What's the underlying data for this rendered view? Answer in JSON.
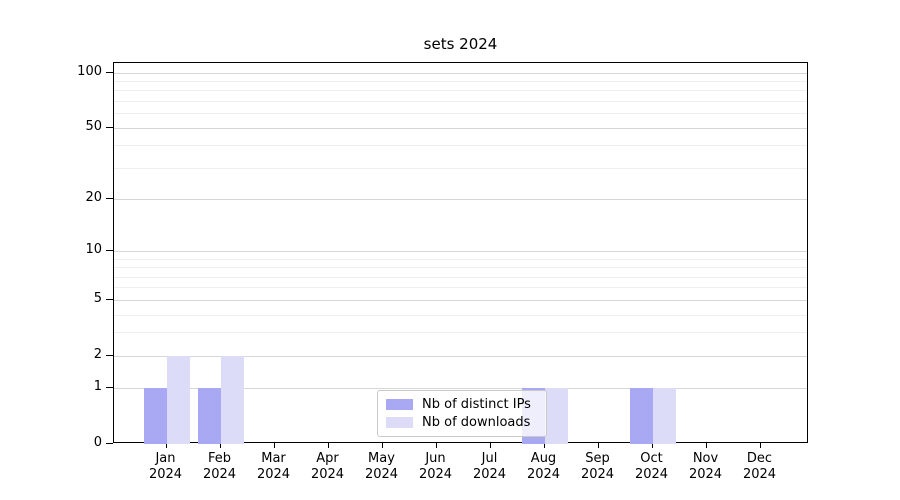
{
  "chart_data": {
    "type": "bar",
    "title": "sets 2024",
    "year_label": "2024",
    "months": [
      "Jan",
      "Feb",
      "Mar",
      "Apr",
      "May",
      "Jun",
      "Jul",
      "Aug",
      "Sep",
      "Oct",
      "Nov",
      "Dec"
    ],
    "series": [
      {
        "name": "Nb of distinct IPs",
        "color": "#a9a9f3",
        "values": [
          1,
          1,
          0,
          0,
          0,
          0,
          0,
          1,
          0,
          1,
          0,
          0
        ]
      },
      {
        "name": "Nb of downloads",
        "color": "#dcdcf9",
        "values": [
          2,
          2,
          0,
          0,
          0,
          0,
          0,
          1,
          0,
          1,
          0,
          0
        ]
      }
    ],
    "y_axis": {
      "scale": "log1p",
      "ticks": [
        100,
        50,
        20,
        10,
        5,
        2,
        1,
        0
      ],
      "minor_gridlines": [
        3,
        4,
        6,
        7,
        8,
        9,
        30,
        40,
        60,
        70,
        80,
        90
      ],
      "max": 113
    },
    "x_axis": {
      "tick_count": 12
    },
    "legend": {
      "position": "bottom-center"
    },
    "grid": true,
    "colors": {
      "bar_distinct_ips": "#a9a9f3",
      "bar_downloads": "#dcdcf9",
      "major_grid": "#d6d6d6",
      "minor_grid": "#eeeeee",
      "axis": "#000000",
      "background": "#ffffff"
    }
  }
}
